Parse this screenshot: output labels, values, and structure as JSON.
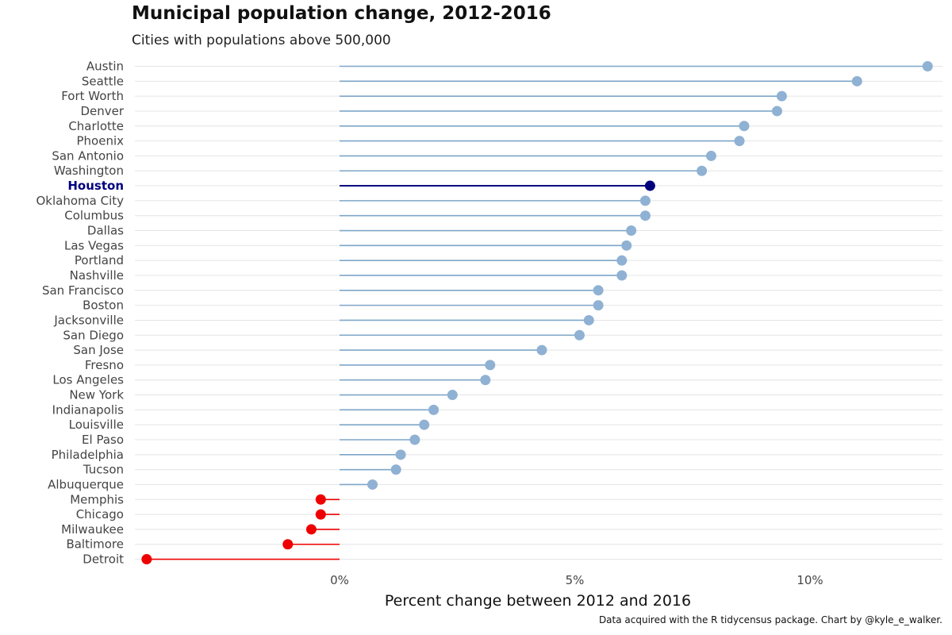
{
  "chart_data": {
    "type": "lollipop",
    "title": "Municipal population change, 2012-2016",
    "subtitle": "Cities with populations above 500,000",
    "xlabel": "Percent change between 2012 and 2016",
    "ylabel": "",
    "caption": "Data acquired with the R tidycensus package. Chart by @kyle_e_walker.",
    "xlim": [
      -4.2,
      12.8
    ],
    "xticks": [
      {
        "value": 0,
        "label": "0%"
      },
      {
        "value": 5,
        "label": "5%"
      },
      {
        "value": 10,
        "label": "10%"
      }
    ],
    "highlight": "Houston",
    "colors": {
      "positive": "#8fb1d3",
      "positive_line": "#7ea6c8",
      "negative": "#ee0000",
      "highlight": "#00007f",
      "grid": "#e4e4e4"
    },
    "categories": [
      "Austin",
      "Seattle",
      "Fort Worth",
      "Denver",
      "Charlotte",
      "Phoenix",
      "San Antonio",
      "Washington",
      "Houston",
      "Oklahoma City",
      "Columbus",
      "Dallas",
      "Las Vegas",
      "Portland",
      "Nashville",
      "San Francisco",
      "Boston",
      "Jacksonville",
      "San Diego",
      "San Jose",
      "Fresno",
      "Los Angeles",
      "New York",
      "Indianapolis",
      "Louisville",
      "El Paso",
      "Philadelphia",
      "Tucson",
      "Albuquerque",
      "Memphis",
      "Chicago",
      "Milwaukee",
      "Baltimore",
      "Detroit"
    ],
    "values": [
      12.5,
      11.0,
      9.4,
      9.3,
      8.6,
      8.5,
      7.9,
      7.7,
      6.6,
      6.5,
      6.5,
      6.2,
      6.1,
      6.0,
      6.0,
      5.5,
      5.5,
      5.3,
      5.1,
      4.3,
      3.2,
      3.1,
      2.4,
      2.0,
      1.8,
      1.6,
      1.3,
      1.2,
      0.7,
      -0.4,
      -0.4,
      -0.6,
      -1.1,
      -4.1
    ]
  }
}
